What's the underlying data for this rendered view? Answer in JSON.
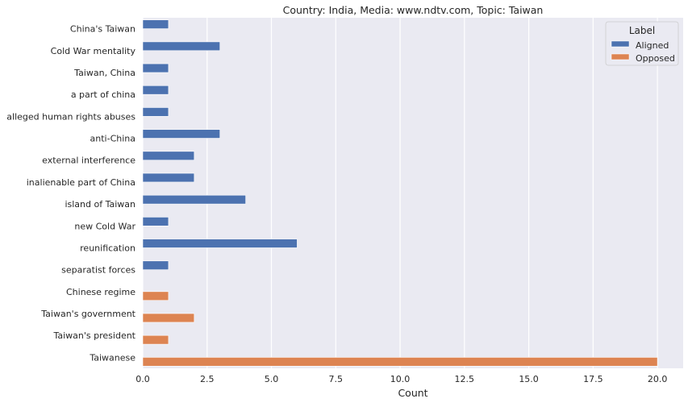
{
  "chart_data": {
    "type": "bar",
    "orientation": "horizontal",
    "title": "Country: India, Media: www.ndtv.com, Topic: Taiwan",
    "xlabel": "Count",
    "ylabel": "",
    "xlim": [
      0,
      21
    ],
    "xticks": [
      0.0,
      2.5,
      5.0,
      7.5,
      10.0,
      12.5,
      15.0,
      17.5,
      20.0
    ],
    "xtick_labels": [
      "0.0",
      "2.5",
      "5.0",
      "7.5",
      "10.0",
      "12.5",
      "15.0",
      "17.5",
      "20.0"
    ],
    "grid": true,
    "legend_position": "top-right",
    "legend_title": "Label",
    "categories": [
      "China's Taiwan",
      "Cold War mentality",
      "Taiwan, China",
      "a part of china",
      "alleged human rights abuses",
      "anti-China",
      "external interference",
      "inalienable part of China",
      "island of Taiwan",
      "new Cold War",
      "reunification",
      "separatist forces",
      "Chinese regime",
      "Taiwan's government",
      "Taiwan's president",
      "Taiwanese"
    ],
    "series": [
      {
        "name": "Aligned",
        "color": "#4c72b0",
        "values": [
          1,
          3,
          1,
          1,
          1,
          3,
          2,
          2,
          4,
          1,
          6,
          1,
          null,
          null,
          null,
          null
        ]
      },
      {
        "name": "Opposed",
        "color": "#dd8452",
        "values": [
          null,
          null,
          null,
          null,
          null,
          null,
          null,
          null,
          null,
          null,
          null,
          null,
          1,
          2,
          1,
          20
        ]
      }
    ]
  }
}
